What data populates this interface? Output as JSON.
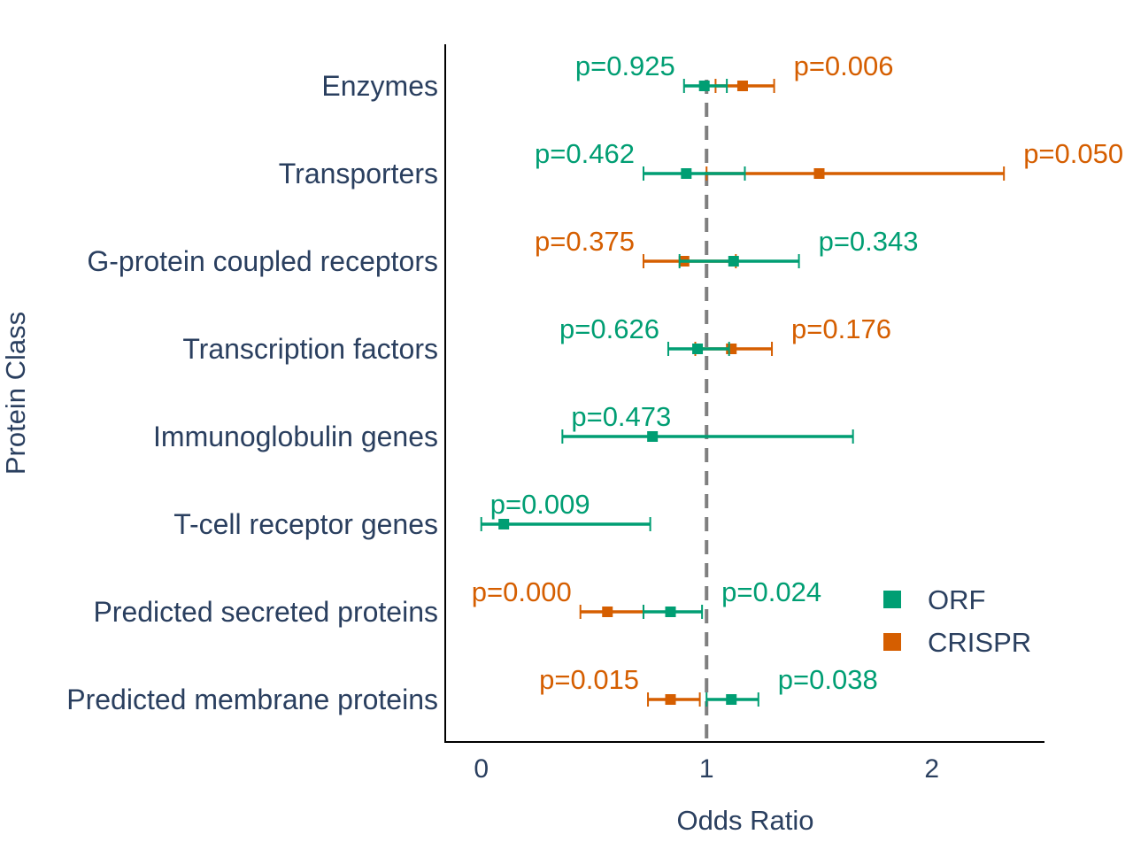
{
  "chart_data": {
    "type": "forest",
    "xlabel": "Odds Ratio",
    "ylabel": "Protein Class",
    "xlim": [
      -0.16,
      2.5
    ],
    "xticks": [
      0,
      1,
      2
    ],
    "reference_line": 1,
    "categories": [
      "Enzymes",
      "Transporters",
      "G-protein coupled receptors",
      "Transcription factors",
      "Immunoglobulin genes",
      "T-cell receptor genes",
      "Predicted secreted proteins",
      "Predicted membrane proteins"
    ],
    "series": [
      {
        "name": "ORF",
        "color": "#009e73",
        "points": [
          {
            "or": 0.99,
            "lo": 0.9,
            "hi": 1.09,
            "p": "p=0.925"
          },
          {
            "or": 0.91,
            "lo": 0.72,
            "hi": 1.17,
            "p": "p=0.462"
          },
          {
            "or": 1.12,
            "lo": 0.88,
            "hi": 1.41,
            "p": "p=0.343"
          },
          {
            "or": 0.96,
            "lo": 0.83,
            "hi": 1.1,
            "p": "p=0.626"
          },
          {
            "or": 0.76,
            "lo": 0.36,
            "hi": 1.65,
            "p": "p=0.473"
          },
          {
            "or": 0.1,
            "lo": 0.0,
            "hi": 0.75,
            "p": "p=0.009"
          },
          {
            "or": 0.84,
            "lo": 0.72,
            "hi": 0.98,
            "p": "p=0.024"
          },
          {
            "or": 1.11,
            "lo": 1.0,
            "hi": 1.23,
            "p": "p=0.038"
          }
        ]
      },
      {
        "name": "CRISPR",
        "color": "#d55e00",
        "points": [
          {
            "or": 1.16,
            "lo": 1.04,
            "hi": 1.3,
            "p": "p=0.006"
          },
          {
            "or": 1.5,
            "lo": 1.0,
            "hi": 2.32,
            "p": "p=0.050"
          },
          {
            "or": 0.9,
            "lo": 0.72,
            "hi": 1.13,
            "p": "p=0.375"
          },
          {
            "or": 1.11,
            "lo": 0.95,
            "hi": 1.29,
            "p": "p=0.176"
          },
          null,
          null,
          {
            "or": 0.56,
            "lo": 0.44,
            "hi": 0.72,
            "p": "p=0.000"
          },
          {
            "or": 0.84,
            "lo": 0.74,
            "hi": 0.97,
            "p": "p=0.015"
          }
        ]
      }
    ],
    "legend": {
      "position": "bottom-right"
    }
  }
}
